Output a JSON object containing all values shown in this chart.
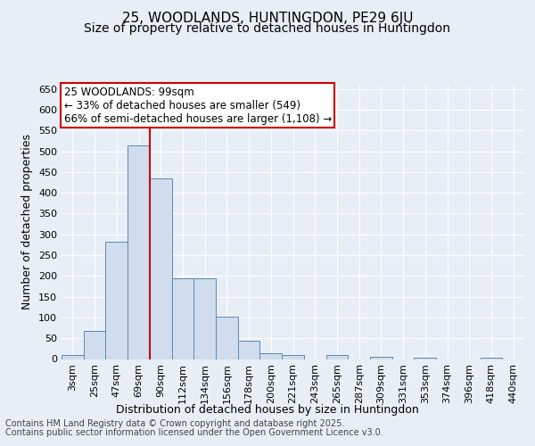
{
  "title_line1": "25, WOODLANDS, HUNTINGDON, PE29 6JU",
  "title_line2": "Size of property relative to detached houses in Huntingdon",
  "xlabel": "Distribution of detached houses by size in Huntingdon",
  "ylabel": "Number of detached properties",
  "footer_line1": "Contains HM Land Registry data © Crown copyright and database right 2025.",
  "footer_line2": "Contains public sector information licensed under the Open Government Licence v3.0.",
  "bin_labels": [
    "3sqm",
    "25sqm",
    "47sqm",
    "69sqm",
    "90sqm",
    "112sqm",
    "134sqm",
    "156sqm",
    "178sqm",
    "200sqm",
    "221sqm",
    "243sqm",
    "265sqm",
    "287sqm",
    "309sqm",
    "331sqm",
    "353sqm",
    "374sqm",
    "396sqm",
    "418sqm",
    "440sqm"
  ],
  "bar_values": [
    10,
    67,
    282,
    515,
    435,
    195,
    195,
    103,
    45,
    15,
    10,
    0,
    10,
    0,
    5,
    0,
    3,
    0,
    0,
    3,
    0
  ],
  "bar_color": "#cfdded",
  "bar_edge_color": "#5a8ab0",
  "vline_x_index": 4,
  "vline_color": "#cc0000",
  "annotation_line1": "25 WOODLANDS: 99sqm",
  "annotation_line2": "← 33% of detached houses are smaller (549)",
  "annotation_line3": "66% of semi-detached houses are larger (1,108) →",
  "annotation_box_facecolor": "#ffffff",
  "annotation_box_edgecolor": "#cc0000",
  "ylim": [
    0,
    660
  ],
  "yticks": [
    0,
    50,
    100,
    150,
    200,
    250,
    300,
    350,
    400,
    450,
    500,
    550,
    600,
    650
  ],
  "bg_color": "#e8eef5",
  "plot_bg_color": "#e8eef5",
  "grid_color": "#ffffff",
  "title_fontsize": 11,
  "subtitle_fontsize": 10,
  "ylabel_fontsize": 9,
  "xlabel_fontsize": 9,
  "tick_fontsize": 8,
  "annotation_fontsize": 8.5,
  "footer_fontsize": 7
}
